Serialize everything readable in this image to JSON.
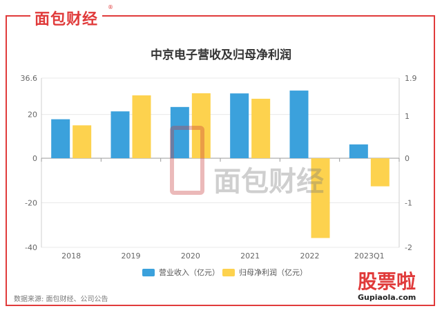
{
  "brand": {
    "name": "面包财经",
    "reg": "®"
  },
  "title": "中京电子营收及归母净利润",
  "source": "数据来源: 面包财经、公司公告",
  "watermark": {
    "name": "面包财经",
    "reg": "®"
  },
  "corner_logo": {
    "name": "股票啦",
    "site": "Gupiaola.com"
  },
  "colors": {
    "revenue": "#3ba1dc",
    "profit": "#fdd24e",
    "frame": "#e03a3a"
  },
  "chart_data": {
    "type": "bar",
    "categories": [
      "2018",
      "2019",
      "2020",
      "2021",
      "2022",
      "2023Q1"
    ],
    "series": [
      {
        "name": "营业收入（亿元）",
        "axis": "left",
        "values": [
          17.8,
          21.4,
          23.4,
          29.6,
          30.9,
          6.3
        ]
      },
      {
        "name": "归母净利润（亿元）",
        "axis": "right",
        "values": [
          0.78,
          1.49,
          1.54,
          1.41,
          -1.79,
          -0.63
        ]
      }
    ],
    "y_left": {
      "min": -40,
      "max": 36.6,
      "ticks": [
        "36.6",
        "20",
        "0",
        "-20",
        "-40"
      ],
      "tick_values": [
        36.6,
        20,
        0,
        -20,
        -40
      ]
    },
    "y_right": {
      "min": -2,
      "max": 1.9,
      "ticks": [
        "1.9",
        "1",
        "0",
        "-1",
        "-2"
      ],
      "tick_values": [
        1.9,
        1,
        0,
        -1,
        -2
      ]
    },
    "legend": "bottom",
    "grid": true
  }
}
